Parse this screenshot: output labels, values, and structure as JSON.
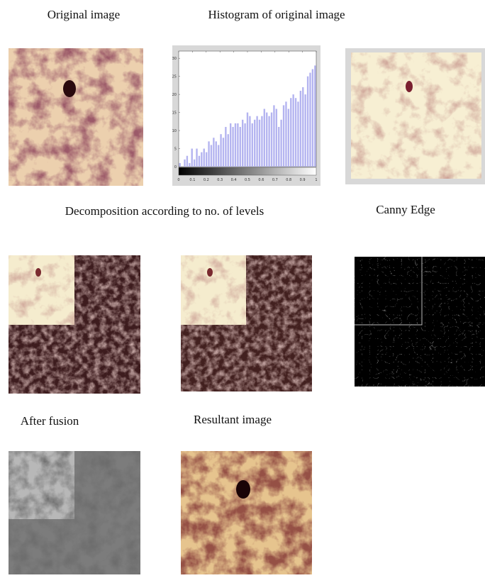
{
  "figure": {
    "captions": {
      "original": "Original image",
      "histogram": "Histogram of original image",
      "decomposition": "Decomposition according to no. of levels",
      "canny": "Canny Edge",
      "fusion": "After fusion",
      "resultant": "Resultant image"
    }
  },
  "histogram": {
    "type": "bar",
    "color": "#b4b4f0",
    "xlim": [
      0,
      1
    ],
    "ylim": [
      0,
      32
    ],
    "xticks": [
      0,
      0.1,
      0.2,
      0.3,
      0.4,
      0.5,
      0.6,
      0.7,
      0.8,
      0.9,
      1
    ],
    "yticks": [
      0,
      5,
      10,
      15,
      20,
      25,
      30
    ],
    "counts": [
      1,
      0,
      2,
      3,
      1,
      5,
      2,
      5,
      3,
      4,
      5,
      4,
      7,
      6,
      8,
      7,
      6,
      9,
      8,
      11,
      9,
      12,
      11,
      12,
      12,
      11,
      13,
      12,
      15,
      14,
      12,
      13,
      14,
      13,
      14,
      16,
      15,
      14,
      15,
      17,
      16,
      11,
      13,
      17,
      18,
      16,
      19,
      20,
      19,
      18,
      21,
      22,
      20,
      25,
      26,
      27,
      28
    ]
  }
}
